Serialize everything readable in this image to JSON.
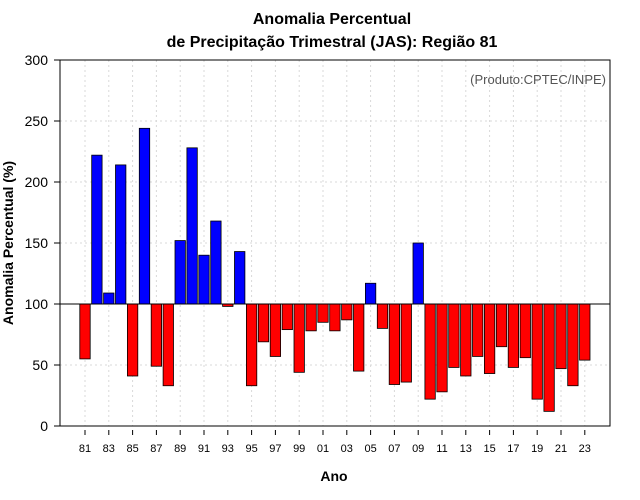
{
  "chart_data": {
    "type": "bar",
    "title": [
      "Anomalia Percentual",
      "de Precipitação Trimestral (JAS): Região 81"
    ],
    "subtitle": "(Produto:CPTEC/INPE)",
    "xlabel": "Ano",
    "ylabel": "Anomalia Percentual (%)",
    "ylim": [
      0,
      300
    ],
    "yticks": [
      0,
      50,
      100,
      150,
      200,
      250,
      300
    ],
    "baseline": 100,
    "grid": true,
    "colors": {
      "above": "#0000ff",
      "below": "#ff0000",
      "edge": "#000000",
      "grid": "#d9d9d9",
      "credit": "#555555"
    },
    "categories": [
      "81",
      "82",
      "83",
      "84",
      "85",
      "86",
      "87",
      "88",
      "89",
      "90",
      "91",
      "92",
      "93",
      "94",
      "95",
      "96",
      "97",
      "98",
      "99",
      "00",
      "01",
      "02",
      "03",
      "04",
      "05",
      "06",
      "07",
      "08",
      "09",
      "10",
      "11",
      "12",
      "13",
      "14",
      "15",
      "16",
      "17",
      "18",
      "19",
      "20",
      "21",
      "22",
      "23"
    ],
    "xtick_labels": [
      "81",
      "83",
      "85",
      "87",
      "89",
      "91",
      "93",
      "95",
      "97",
      "99",
      "01",
      "03",
      "05",
      "07",
      "09",
      "11",
      "13",
      "15",
      "17",
      "19",
      "21",
      "23"
    ],
    "values": [
      55,
      222,
      109,
      214,
      41,
      244,
      49,
      33,
      152,
      228,
      140,
      168,
      98,
      143,
      33,
      69,
      57,
      79,
      44,
      78,
      85,
      78,
      87,
      45,
      117,
      80,
      34,
      36,
      150,
      22,
      28,
      48,
      41,
      57,
      43,
      65,
      48,
      56,
      22,
      12,
      47,
      33,
      54
    ]
  }
}
